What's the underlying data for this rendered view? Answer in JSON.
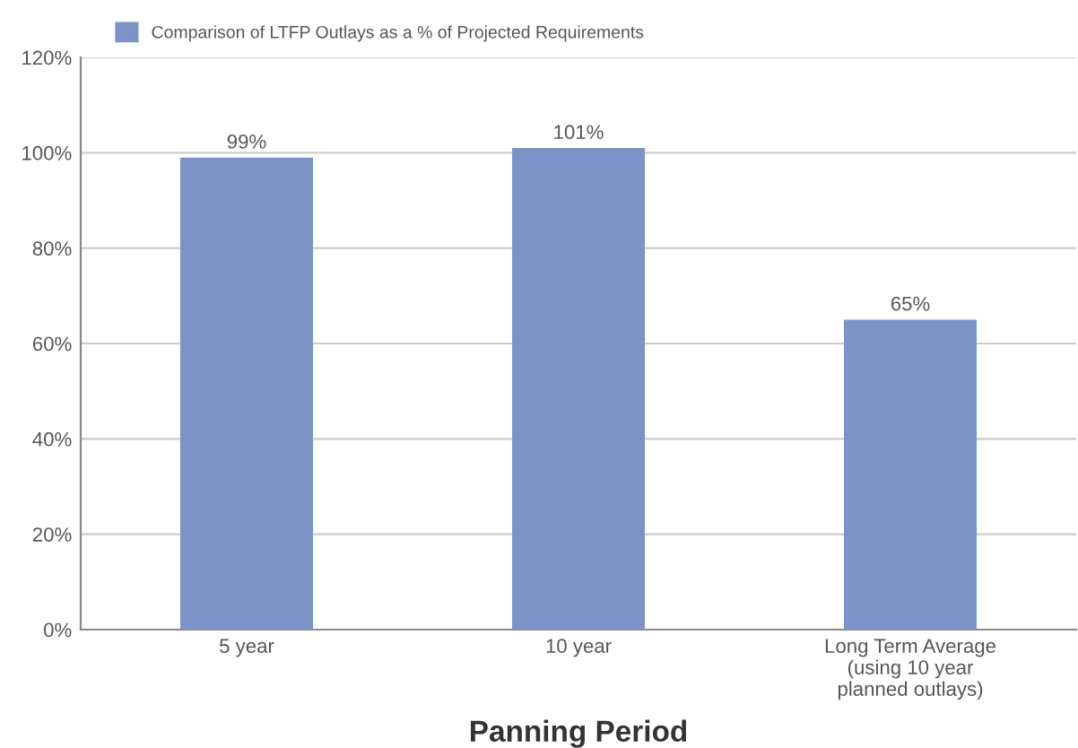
{
  "chart_data": {
    "type": "bar",
    "xlabel": "Panning Period",
    "categories": [
      "5 year",
      "10 year",
      "Long Term Average\n(using 10 year\nplanned outlays)"
    ],
    "series": [
      {
        "name": "Comparison of LTFP Outlays as a % of Projected Requirements",
        "color": "#7b93c6",
        "values": [
          99,
          101,
          65
        ],
        "value_labels": [
          "99%",
          "101%",
          "65%"
        ]
      }
    ],
    "ylim": [
      0,
      120
    ],
    "yticks": [
      {
        "value": 0,
        "label": "0%"
      },
      {
        "value": 20,
        "label": "20%"
      },
      {
        "value": 40,
        "label": "40%"
      },
      {
        "value": 60,
        "label": "60%"
      },
      {
        "value": 80,
        "label": "80%"
      },
      {
        "value": 100,
        "label": "100%"
      },
      {
        "value": 120,
        "label": "120%"
      }
    ],
    "grid": "y",
    "legend": "top left"
  }
}
